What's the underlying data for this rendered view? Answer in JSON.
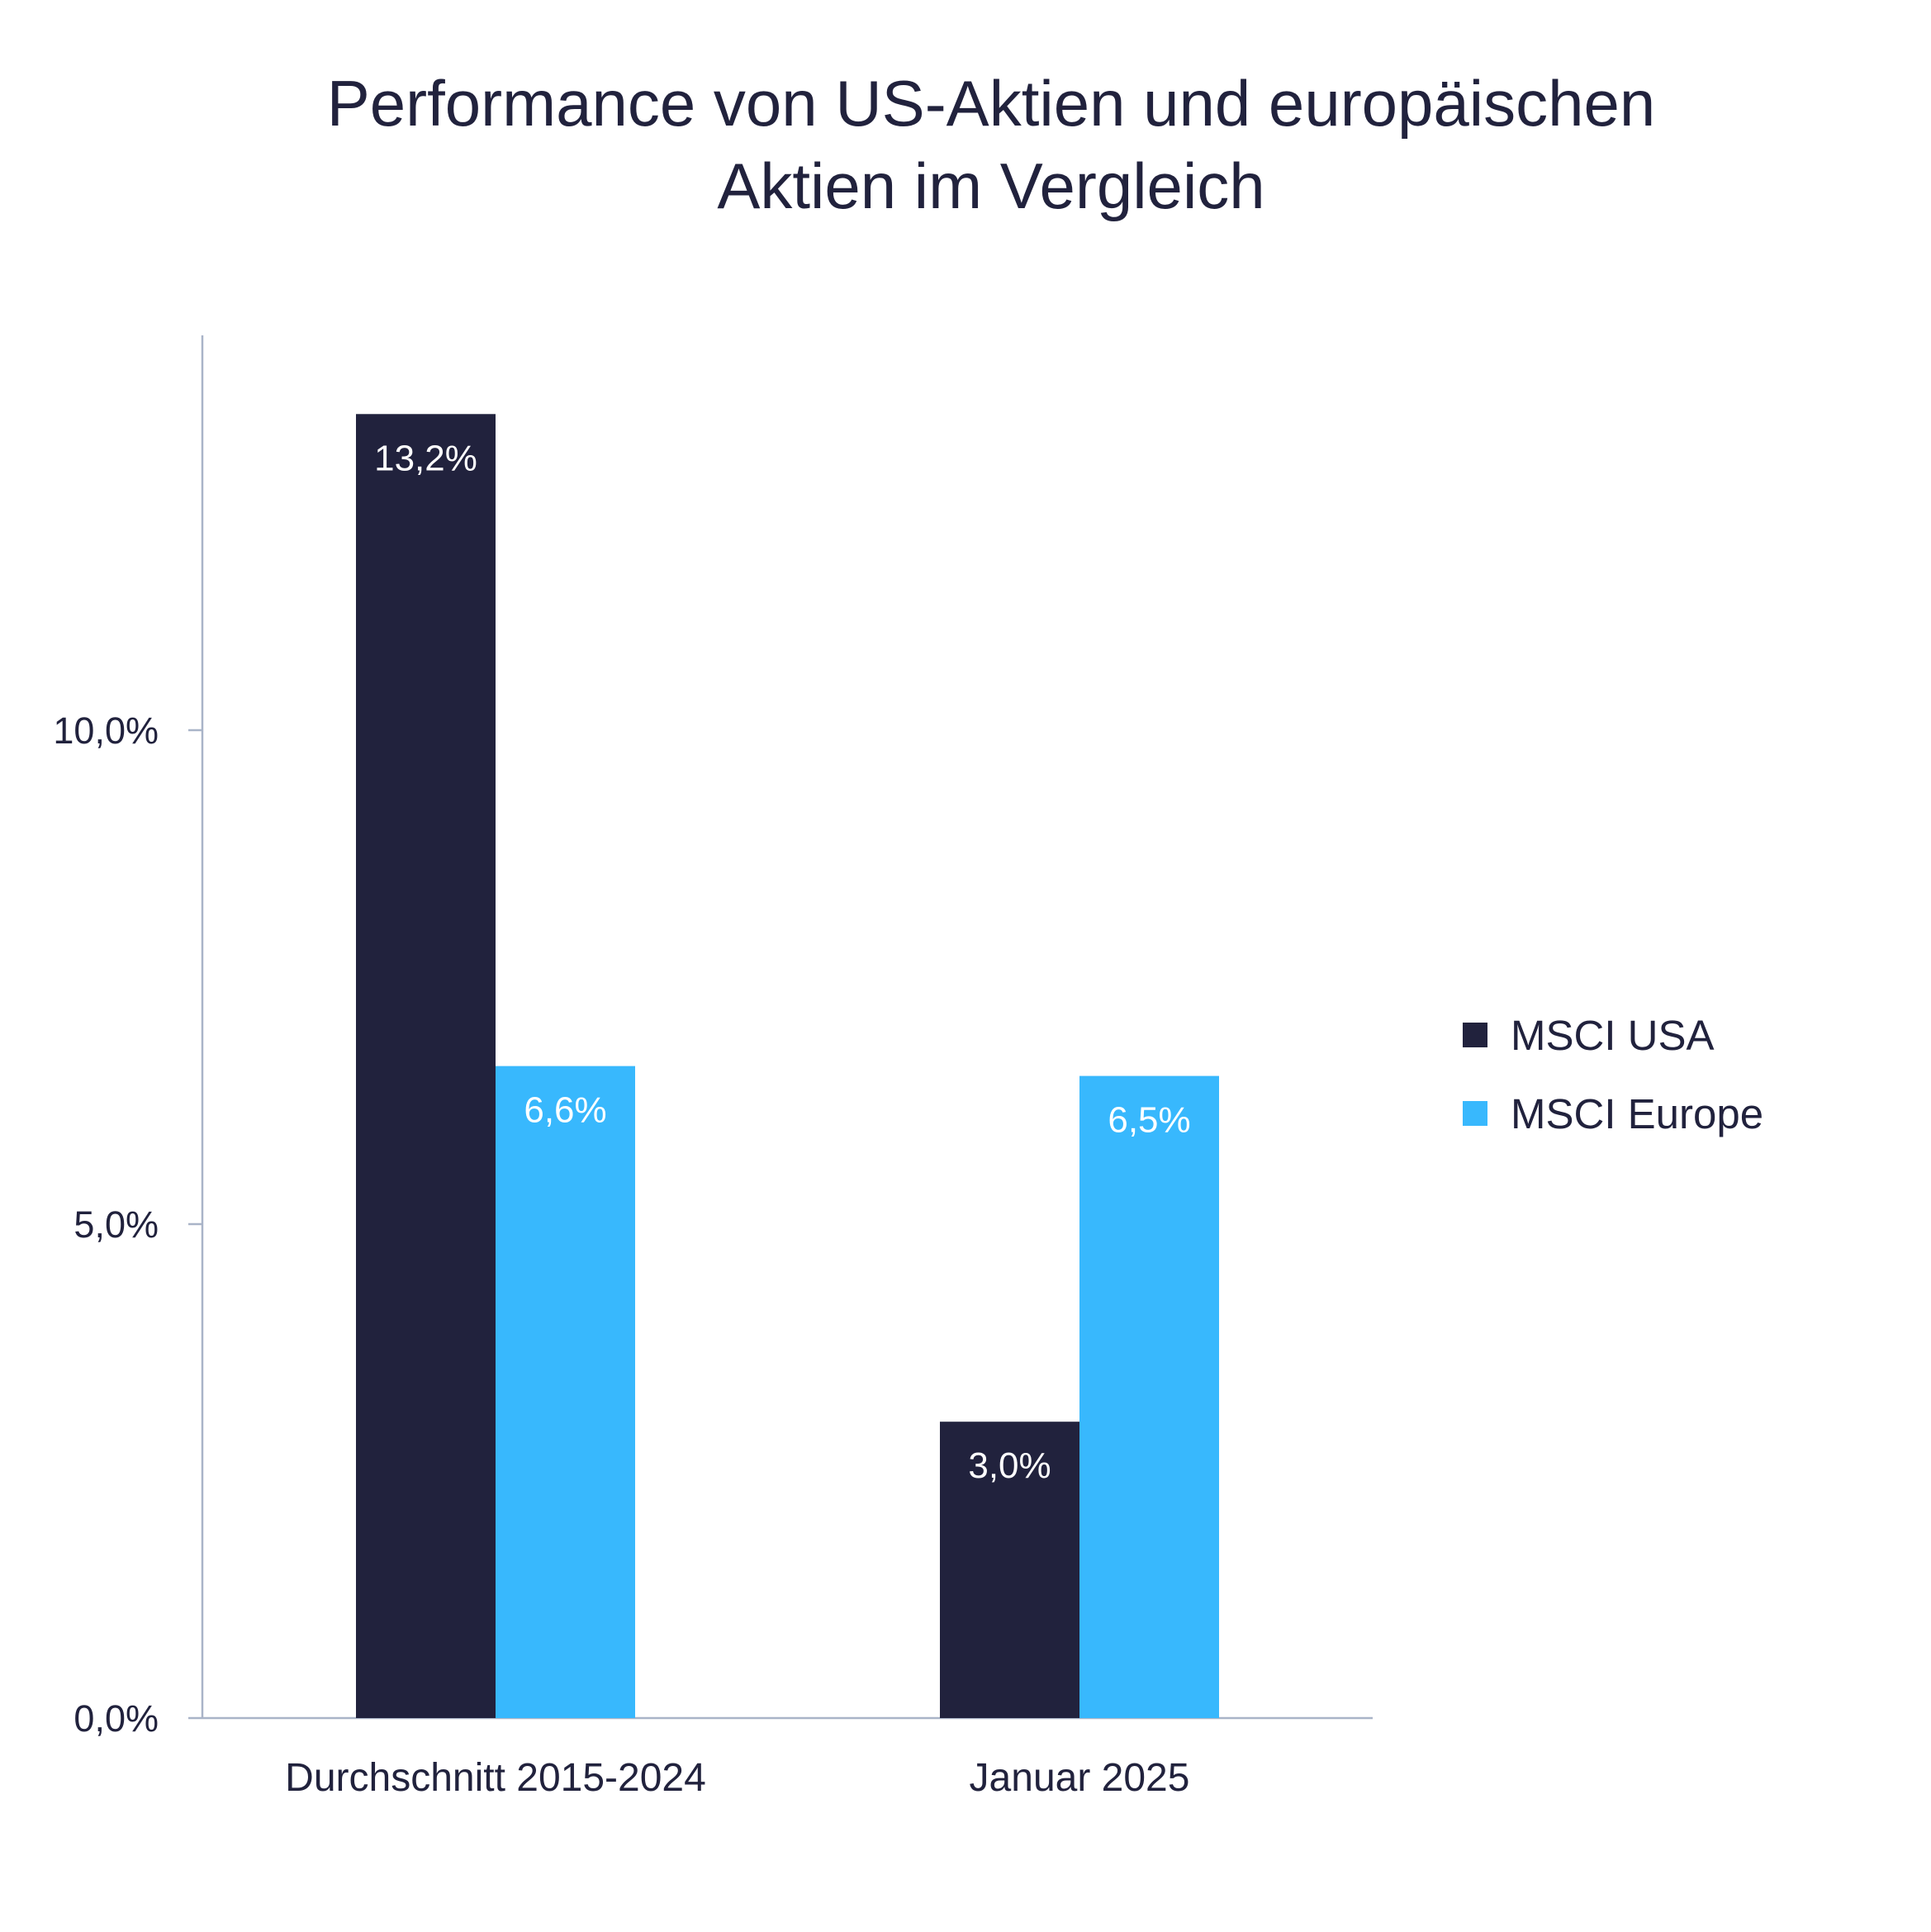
{
  "chart_data": {
    "type": "bar",
    "title": [
      "Performance von US-Aktien und europäischen",
      "Aktien im Vergleich"
    ],
    "categories": [
      "Durchschnitt 2015-2024",
      "Januar 2025"
    ],
    "series": [
      {
        "name": "MSCI USA",
        "values": [
          13.2,
          3.0
        ],
        "labels": [
          "13,2%",
          "3,0%"
        ],
        "color": "#21223d"
      },
      {
        "name": "MSCI Europe",
        "values": [
          6.6,
          6.5
        ],
        "labels": [
          "6,6%",
          "6,5%"
        ],
        "color": "#38b8fd"
      }
    ],
    "yticks": [
      0,
      5,
      10
    ],
    "ytick_labels": [
      "0,0%",
      "5,0%",
      "10,0%"
    ],
    "ylim": [
      0,
      14
    ],
    "xlabel": "",
    "ylabel": "",
    "grid": false,
    "legend": "right",
    "axis_color": "#a9b4c8",
    "text_color": "#21223d"
  }
}
